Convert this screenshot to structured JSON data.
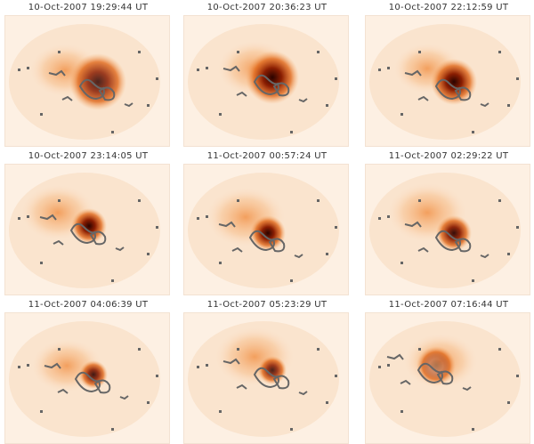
{
  "panels": [
    {
      "title": "10-Oct-2007 19:29:44 UT"
    },
    {
      "title": "10-Oct-2007 20:36:23 UT"
    },
    {
      "title": "10-Oct-2007 22:12:59 UT"
    },
    {
      "title": "10-Oct-2007 23:14:05 UT"
    },
    {
      "title": "11-Oct-2007 00:57:24 UT"
    },
    {
      "title": "11-Oct-2007 02:29:22 UT"
    },
    {
      "title": "11-Oct-2007 04:06:39 UT"
    },
    {
      "title": "11-Oct-2007 05:23:29 UT"
    },
    {
      "title": "11-Oct-2007 07:16:44 UT"
    }
  ]
}
